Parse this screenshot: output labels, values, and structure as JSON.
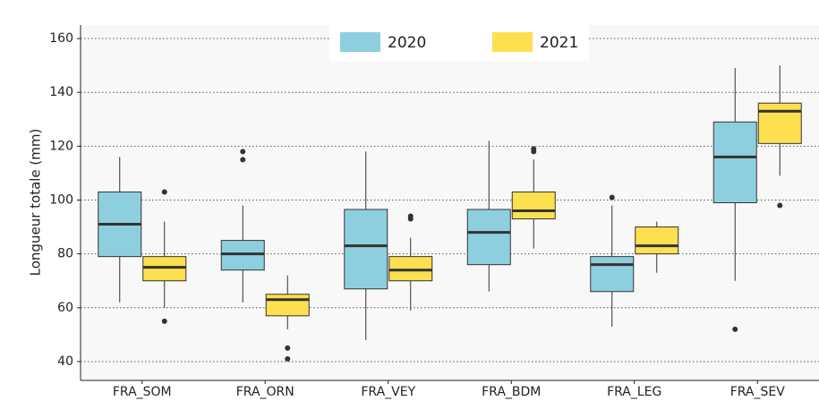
{
  "chart_data": {
    "type": "box",
    "y_label": "Longueur totale (mm)",
    "categories": [
      "FRA_SOM",
      "FRA_ORN",
      "FRA_VEY",
      "FRA_BDM",
      "FRA_LEG",
      "FRA_SEV"
    ],
    "ylim": [
      33,
      165
    ],
    "yticks": [
      40,
      60,
      80,
      100,
      120,
      140,
      160
    ],
    "grid": true,
    "legend": "top",
    "series": [
      {
        "name": "2020",
        "color": "#8ecfdf",
        "whisker_low": [
          62,
          62,
          48,
          66,
          53,
          70
        ],
        "q1": [
          79,
          74,
          67,
          76,
          66,
          99
        ],
        "median": [
          91,
          80,
          83,
          88,
          76,
          116
        ],
        "q3": [
          103,
          85,
          96.5,
          96.5,
          79,
          129
        ],
        "whisker_high": [
          116,
          98,
          118,
          122,
          98,
          149
        ],
        "outliers": [
          [],
          [
            118,
            115
          ],
          [],
          [],
          [
            101
          ],
          [
            52
          ]
        ]
      },
      {
        "name": "2021",
        "color": "#fde050",
        "whisker_low": [
          60,
          52,
          59,
          82,
          73,
          109
        ],
        "q1": [
          70,
          57,
          70,
          93,
          80,
          121
        ],
        "median": [
          75,
          63,
          74,
          96,
          83,
          133
        ],
        "q3": [
          79,
          65,
          79,
          103,
          90,
          136
        ],
        "whisker_high": [
          92,
          72,
          86,
          115,
          92,
          150
        ],
        "outliers": [
          [
            103,
            55
          ],
          [
            45,
            41
          ],
          [
            94,
            93
          ],
          [
            119,
            118
          ],
          [],
          [
            98
          ]
        ]
      }
    ]
  }
}
